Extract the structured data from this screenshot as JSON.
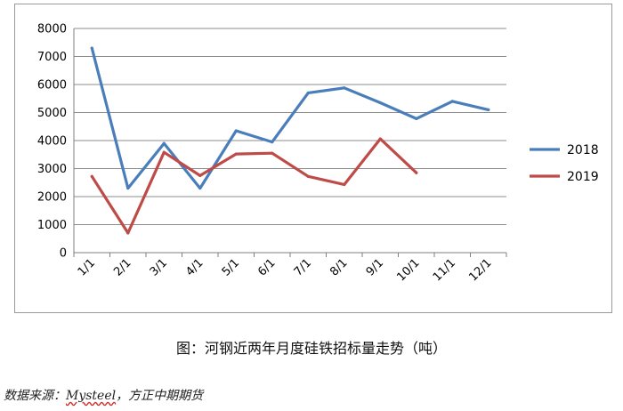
{
  "chart_data": {
    "type": "line",
    "categories": [
      "1/1",
      "2/1",
      "3/1",
      "4/1",
      "5/1",
      "6/1",
      "7/1",
      "8/1",
      "9/1",
      "10/1",
      "11/1",
      "12/1"
    ],
    "series": [
      {
        "name": "2018",
        "color": "#4a7ebb",
        "values": [
          7300,
          2300,
          3900,
          2300,
          4350,
          3950,
          5700,
          5880,
          5350,
          4780,
          5400,
          5100
        ]
      },
      {
        "name": "2019",
        "color": "#be4b48",
        "values": [
          2720,
          700,
          3580,
          2750,
          3520,
          3550,
          2720,
          2430,
          4060,
          2850,
          null,
          null
        ]
      }
    ],
    "y_ticks": [
      "0",
      "1000",
      "2000",
      "3000",
      "4000",
      "5000",
      "6000",
      "7000",
      "8000"
    ],
    "ylim": [
      0,
      8000
    ],
    "grid": true,
    "legend": "right"
  },
  "caption": "图：河钢近两年月度硅铁招标量走势（吨）",
  "source": {
    "prefix": "数据来源：",
    "brand": "Mysteel",
    "suffix": "，方正中期期货"
  }
}
